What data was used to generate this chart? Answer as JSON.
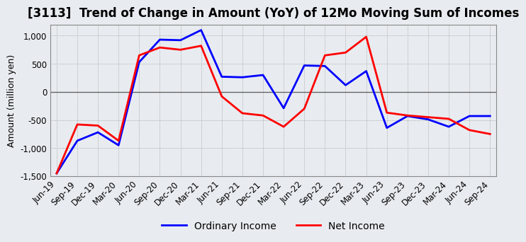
{
  "title": "[3113]  Trend of Change in Amount (YoY) of 12Mo Moving Sum of Incomes",
  "ylabel": "Amount (million yen)",
  "x_labels": [
    "Jun-19",
    "Sep-19",
    "Dec-19",
    "Mar-20",
    "Jun-20",
    "Sep-20",
    "Dec-20",
    "Mar-21",
    "Jun-21",
    "Sep-21",
    "Dec-21",
    "Mar-22",
    "Jun-22",
    "Sep-22",
    "Dec-22",
    "Mar-23",
    "Jun-23",
    "Sep-23",
    "Dec-23",
    "Mar-24",
    "Jun-24",
    "Sep-24"
  ],
  "ordinary_income": [
    -1450,
    -870,
    -720,
    -950,
    530,
    930,
    920,
    1100,
    270,
    260,
    300,
    -290,
    470,
    460,
    120,
    370,
    -640,
    -430,
    -490,
    -620,
    -430,
    -430
  ],
  "net_income": [
    -1450,
    -580,
    -600,
    -870,
    650,
    790,
    750,
    820,
    -80,
    -380,
    -420,
    -620,
    -300,
    650,
    700,
    980,
    -370,
    -420,
    -450,
    -480,
    -680,
    -750
  ],
  "ylim": [
    -1500,
    1200
  ],
  "yticks": [
    -1500,
    -1000,
    -500,
    0,
    500,
    1000
  ],
  "line_color_ordinary": "#0000FF",
  "line_color_net": "#FF0000",
  "bg_color": "#E8ECF0",
  "plot_bg_color": "#E8ECF0",
  "grid_color": "#999999",
  "zero_line_color": "#666666",
  "legend_ordinary": "Ordinary Income",
  "legend_net": "Net Income",
  "title_fontsize": 12,
  "axis_fontsize": 9,
  "tick_fontsize": 8.5,
  "linewidth": 2.0
}
